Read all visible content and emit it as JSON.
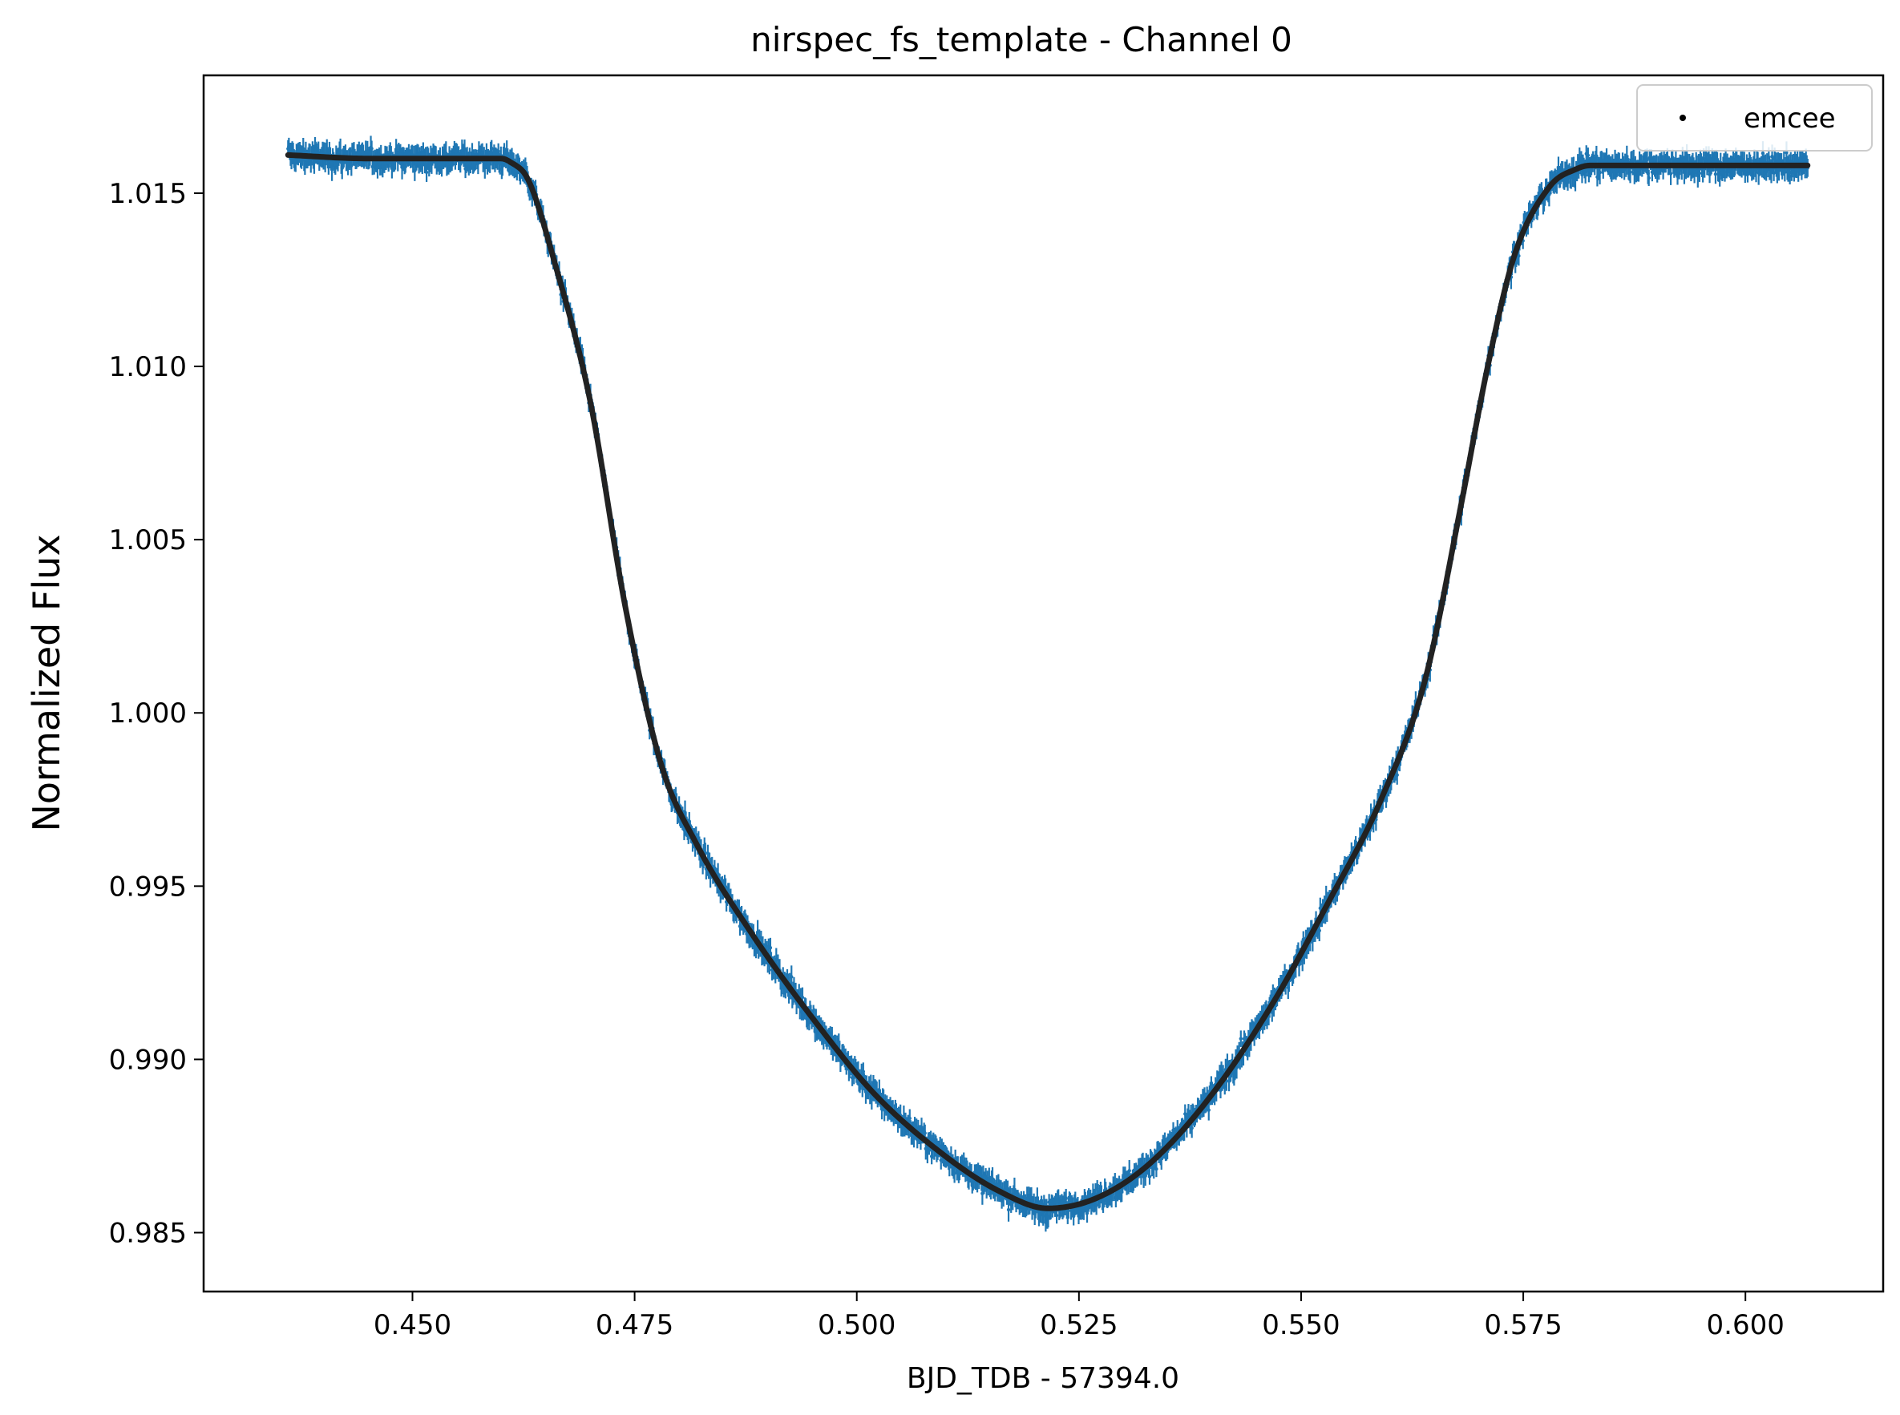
{
  "chart_data": {
    "type": "scatter",
    "title": "nirspec_fs_template - Channel 0",
    "xlabel": "BJD_TDB - 57394.0",
    "ylabel": "Normalized Flux",
    "xlim": [
      0.4265,
      0.6155
    ],
    "ylim": [
      0.9833,
      1.0184
    ],
    "xticks": [
      "0.450",
      "0.475",
      "0.500",
      "0.525",
      "0.550",
      "0.575",
      "0.600"
    ],
    "yticks": [
      "0.985",
      "0.990",
      "0.995",
      "1.000",
      "1.005",
      "1.010",
      "1.015"
    ],
    "legend": {
      "placement": "top-right",
      "entries": [
        "emcee"
      ]
    },
    "grid": false,
    "x_range": [
      0.436,
      0.607
    ],
    "series": [
      {
        "name": "emcee",
        "color": "#1f77b4",
        "model_color": "#222222",
        "x": [
          0.436,
          0.445,
          0.455,
          0.46,
          0.461,
          0.463,
          0.466,
          0.47,
          0.474,
          0.478,
          0.482,
          0.488,
          0.495,
          0.502,
          0.51,
          0.516,
          0.5215,
          0.527,
          0.533,
          0.54,
          0.547,
          0.553,
          0.559,
          0.564,
          0.568,
          0.571,
          0.574,
          0.578,
          0.581,
          0.5825,
          0.583,
          0.595,
          0.607
        ],
        "y": [
          1.0161,
          1.016,
          1.016,
          1.016,
          1.0159,
          1.0154,
          1.013,
          1.009,
          1.003,
          0.9985,
          0.9962,
          0.9937,
          0.9912,
          0.989,
          0.9872,
          0.9862,
          0.9857,
          0.986,
          0.987,
          0.989,
          0.9917,
          0.9945,
          0.9975,
          1.001,
          1.006,
          1.01,
          1.0132,
          1.0152,
          1.0157,
          1.0158,
          1.0158,
          1.0158,
          1.0158
        ],
        "scatter": 0.00025
      }
    ]
  }
}
